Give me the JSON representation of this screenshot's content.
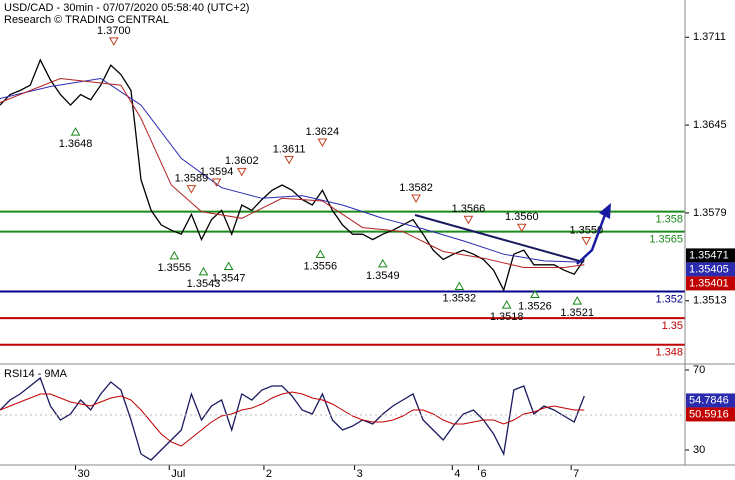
{
  "chart_data": [
    {
      "type": "line",
      "title": "USD/CAD - 30min - 07/07/2020 05:58:40 (UTC+2)",
      "subtitle": "Research © TRADING CENTRAL",
      "xlim": [
        0,
        68
      ],
      "ylim": [
        1.3467,
        1.3739
      ],
      "yticks": [
        1.3711,
        1.3645,
        1.3579,
        1.3513
      ],
      "series": [
        {
          "color": "#000000",
          "x": [
            0,
            1,
            2,
            3,
            4,
            5,
            6,
            7,
            8,
            9,
            10,
            11,
            12,
            13,
            14,
            15,
            16,
            17,
            18,
            19,
            20,
            21,
            22,
            23,
            24,
            25,
            26,
            27,
            28,
            29,
            30,
            31,
            32,
            33,
            34,
            35,
            36,
            37,
            38,
            39,
            40,
            41,
            42,
            43,
            44,
            45,
            46,
            47,
            48,
            49,
            50,
            51,
            52,
            53,
            54,
            55,
            56,
            57,
            58
          ],
          "values": [
            1.366,
            1.3668,
            1.3671,
            1.3675,
            1.3694,
            1.3679,
            1.3668,
            1.366,
            1.3668,
            1.3664,
            1.3675,
            1.369,
            1.3683,
            1.3671,
            1.3604,
            1.3581,
            1.357,
            1.3566,
            1.3563,
            1.3578,
            1.3559,
            1.3574,
            1.3581,
            1.3563,
            1.3585,
            1.3581,
            1.3589,
            1.3596,
            1.36,
            1.3596,
            1.3589,
            1.3585,
            1.3596,
            1.3581,
            1.357,
            1.3563,
            1.3563,
            1.3559,
            1.3563,
            1.3566,
            1.357,
            1.3574,
            1.3563,
            1.3551,
            1.3544,
            1.3548,
            1.3551,
            1.3548,
            1.3544,
            1.3536,
            1.3521,
            1.3548,
            1.3551,
            1.354,
            1.354,
            1.354,
            1.3536,
            1.3533,
            1.3544
          ]
        },
        {
          "color": "#2b2bb0",
          "x": [
            0,
            5,
            10,
            14,
            18,
            22,
            26,
            30,
            34,
            38,
            42,
            46,
            50,
            54,
            58
          ],
          "values": [
            1.3665,
            1.3674,
            1.368,
            1.366,
            1.362,
            1.3598,
            1.359,
            1.3592,
            1.3585,
            1.3575,
            1.3567,
            1.3558,
            1.3548,
            1.3543,
            1.3542
          ]
        },
        {
          "color": "#b22222",
          "x": [
            0,
            6,
            12,
            14,
            17,
            20,
            24,
            28,
            32,
            36,
            40,
            44,
            48,
            52,
            56,
            58
          ],
          "values": [
            1.3662,
            1.368,
            1.3675,
            1.365,
            1.36,
            1.358,
            1.3575,
            1.359,
            1.3588,
            1.3568,
            1.3565,
            1.355,
            1.3545,
            1.3538,
            1.3538,
            1.354
          ]
        }
      ],
      "levels": [
        {
          "value": 1.358,
          "color": "#1a8a1a"
        },
        {
          "value": 1.3565,
          "color": "#1a8a1a"
        },
        {
          "value": 1.352,
          "color": "#00008b"
        },
        {
          "value": 1.35,
          "color": "#c00000"
        },
        {
          "value": 1.348,
          "color": "#c00000"
        }
      ],
      "annotations": [
        {
          "kind": "high",
          "x": 11.3,
          "value": 1.37,
          "label": "1.3700"
        },
        {
          "kind": "low",
          "x": 7.5,
          "value": 1.3648,
          "label": "1.3648"
        },
        {
          "kind": "high",
          "x": 32,
          "value": 1.3624,
          "label": "1.3624"
        },
        {
          "kind": "high",
          "x": 28.7,
          "value": 1.3611,
          "label": "1.3611"
        },
        {
          "kind": "high",
          "x": 24,
          "value": 1.3602,
          "label": "1.3602"
        },
        {
          "kind": "high",
          "x": 21.5,
          "value": 1.3594,
          "label": "1.3594"
        },
        {
          "kind": "high",
          "x": 19,
          "value": 1.3589,
          "label": "1.3589"
        },
        {
          "kind": "high",
          "x": 41.3,
          "value": 1.3582,
          "label": "1.3582"
        },
        {
          "kind": "high",
          "x": 46.5,
          "value": 1.3566,
          "label": "1.3566"
        },
        {
          "kind": "high",
          "x": 51.8,
          "value": 1.356,
          "label": "1.3560"
        },
        {
          "kind": "high",
          "x": 58.2,
          "value": 1.355,
          "label": "1.3550"
        },
        {
          "kind": "low",
          "x": 17.3,
          "value": 1.3555,
          "label": "1.3555"
        },
        {
          "kind": "low",
          "x": 20.2,
          "value": 1.3543,
          "label": "1.3543"
        },
        {
          "kind": "low",
          "x": 22.7,
          "value": 1.3547,
          "label": "1.3547"
        },
        {
          "kind": "low",
          "x": 31.8,
          "value": 1.3556,
          "label": "1.3556"
        },
        {
          "kind": "low",
          "x": 38,
          "value": 1.3549,
          "label": "1.3549"
        },
        {
          "kind": "low",
          "x": 45.6,
          "value": 1.3532,
          "label": "1.3532"
        },
        {
          "kind": "low",
          "x": 50.3,
          "value": 1.3518,
          "label": "1.3518"
        },
        {
          "kind": "low",
          "x": 53.1,
          "value": 1.3526,
          "label": "1.3526"
        },
        {
          "kind": "low",
          "x": 57.3,
          "value": 1.3521,
          "label": "1.3521"
        }
      ],
      "last_labels": [
        {
          "value": 1.35471,
          "color": "#000000"
        },
        {
          "value": 1.35405,
          "color": "#2b2bb0"
        },
        {
          "value": 1.35401,
          "color": "#c00000"
        }
      ]
    },
    {
      "type": "line",
      "title": "RSI14 - 9MA",
      "xlim": [
        0,
        68
      ],
      "ylim": [
        22.5,
        72.5
      ],
      "yticks": [
        70,
        30
      ],
      "xticks": [
        {
          "value": 7.5,
          "label": "30"
        },
        {
          "value": 16.8,
          "label": "Jul"
        },
        {
          "value": 26.2,
          "label": "2"
        },
        {
          "value": 35.2,
          "label": "3"
        },
        {
          "value": 44.9,
          "label": "4"
        },
        {
          "value": 47.5,
          "label": "6"
        },
        {
          "value": 56.7,
          "label": "7"
        }
      ],
      "series": [
        {
          "color": "#1a1a60",
          "x": [
            0,
            1,
            2,
            3,
            4,
            5,
            6,
            7,
            8,
            9,
            10,
            11,
            12,
            13,
            14,
            15,
            16,
            17,
            18,
            19,
            20,
            21,
            22,
            23,
            24,
            25,
            26,
            27,
            28,
            29,
            30,
            31,
            32,
            33,
            34,
            35,
            36,
            37,
            38,
            39,
            40,
            41,
            42,
            43,
            44,
            45,
            46,
            47,
            48,
            49,
            50,
            51,
            52,
            53,
            54,
            55,
            56,
            57,
            58
          ],
          "values": [
            50,
            55,
            58,
            62,
            66,
            52,
            45,
            48,
            55,
            50,
            58,
            64,
            60,
            45,
            28,
            25,
            30,
            35,
            40,
            58,
            45,
            52,
            55,
            40,
            58,
            55,
            60,
            62,
            62,
            57,
            50,
            48,
            58,
            45,
            40,
            42,
            45,
            43,
            48,
            52,
            55,
            58,
            45,
            40,
            35,
            42,
            48,
            50,
            45,
            38,
            28,
            60,
            62,
            48,
            52,
            50,
            47,
            44,
            57
          ]
        },
        {
          "color": "#c00000",
          "x": [
            0,
            1,
            2,
            3,
            4,
            5,
            6,
            7,
            8,
            9,
            10,
            11,
            12,
            13,
            14,
            15,
            16,
            17,
            18,
            19,
            20,
            21,
            22,
            23,
            24,
            25,
            26,
            27,
            28,
            29,
            30,
            31,
            32,
            33,
            34,
            35,
            36,
            37,
            38,
            39,
            40,
            41,
            42,
            43,
            44,
            45,
            46,
            47,
            48,
            49,
            50,
            51,
            52,
            53,
            54,
            55,
            56,
            57,
            58
          ],
          "values": [
            50,
            52,
            54,
            56,
            58,
            58,
            56,
            54,
            53,
            52,
            54,
            56,
            57,
            55,
            50,
            44,
            38,
            34,
            32,
            36,
            40,
            44,
            47,
            48,
            50,
            51,
            53,
            56,
            58,
            59,
            58,
            56,
            55,
            53,
            50,
            47,
            45,
            44,
            44,
            45,
            47,
            50,
            50,
            48,
            45,
            43,
            43,
            44,
            45,
            45,
            43,
            45,
            48,
            49,
            51,
            52,
            51,
            50,
            50
          ]
        }
      ],
      "last_labels": [
        {
          "value": 54.7846,
          "color": "#2b2bb0"
        },
        {
          "value": 50.5916,
          "color": "#c00000"
        }
      ]
    }
  ]
}
